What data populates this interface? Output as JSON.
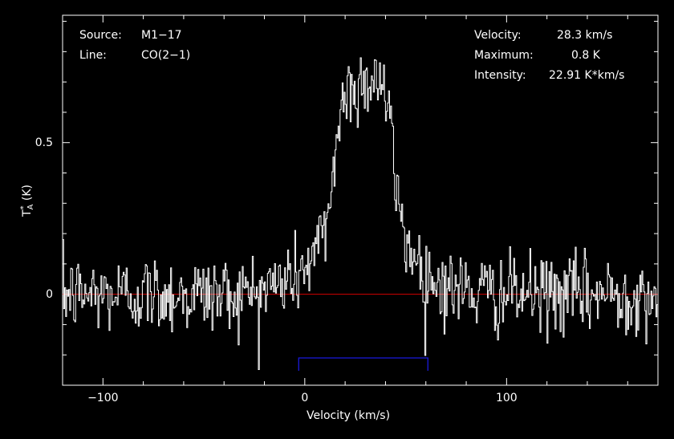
{
  "info_left": [
    {
      "label": "Source:",
      "value": "M1−17"
    },
    {
      "label": "Line:",
      "value": "CO(2−1)"
    }
  ],
  "info_right": [
    {
      "label": "Velocity:",
      "value": "28.3 km/s"
    },
    {
      "label": "Maximum:",
      "value": "0.8 K"
    },
    {
      "label": "Intensity:",
      "value": "22.91 K*km/s"
    }
  ],
  "colors": {
    "background": "#000000",
    "spectrum": "#ffffff",
    "baseline": "#d40000",
    "window": "#1a1adc",
    "frame": "#ffffff"
  },
  "chart_data": {
    "type": "line",
    "title": "",
    "xlabel": "Velocity (km/s)",
    "ylabel": "T*A (K)",
    "ylabel_main": "T",
    "ylabel_sup": "*",
    "ylabel_sub": "A",
    "ylabel_unit": "(K)",
    "xlim": [
      -120,
      175
    ],
    "ylim": [
      -0.3,
      0.92
    ],
    "xticks": [
      -100,
      0,
      100
    ],
    "xtick_labels": [
      "−100",
      "0",
      "100"
    ],
    "yticks": [
      0,
      0.5
    ],
    "ytick_labels": [
      "0",
      "0.5"
    ],
    "grid": false,
    "baseline_y": 0,
    "integration_window": {
      "x": [
        -3,
        61
      ],
      "y": -0.21
    },
    "noise_rms": 0.065,
    "profile": {
      "x": [
        -120,
        -30,
        -15,
        -5,
        0,
        5,
        10,
        14,
        18,
        22,
        26,
        30,
        34,
        38,
        42,
        46,
        50,
        56,
        62,
        72,
        90,
        175
      ],
      "y": [
        0,
        0,
        0.03,
        0.06,
        0.09,
        0.13,
        0.21,
        0.42,
        0.62,
        0.68,
        0.69,
        0.7,
        0.72,
        0.7,
        0.56,
        0.3,
        0.18,
        0.1,
        0.05,
        0.02,
        0,
        0
      ]
    }
  }
}
